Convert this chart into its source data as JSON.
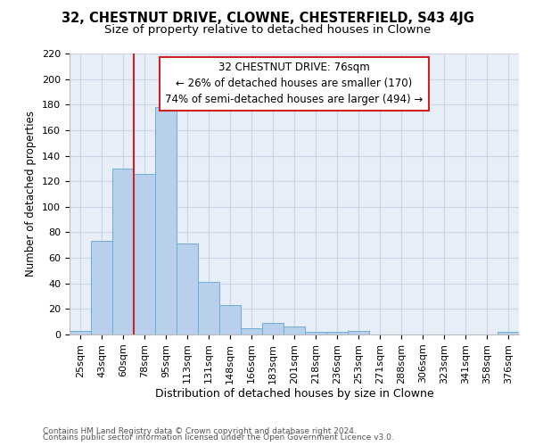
{
  "title1": "32, CHESTNUT DRIVE, CLOWNE, CHESTERFIELD, S43 4JG",
  "title2": "Size of property relative to detached houses in Clowne",
  "xlabel": "Distribution of detached houses by size in Clowne",
  "ylabel": "Number of detached properties",
  "categories": [
    "25sqm",
    "43sqm",
    "60sqm",
    "78sqm",
    "95sqm",
    "113sqm",
    "131sqm",
    "148sqm",
    "166sqm",
    "183sqm",
    "201sqm",
    "218sqm",
    "236sqm",
    "253sqm",
    "271sqm",
    "288sqm",
    "306sqm",
    "323sqm",
    "341sqm",
    "358sqm",
    "376sqm"
  ],
  "values": [
    3,
    73,
    130,
    126,
    178,
    71,
    41,
    23,
    5,
    9,
    6,
    2,
    2,
    3,
    0,
    0,
    0,
    0,
    0,
    0,
    2
  ],
  "bar_color": "#b8d0eb",
  "bar_edge_color": "#6aaed6",
  "vline_x": 2.5,
  "vline_color": "#cc2222",
  "annotation_text": "32 CHESTNUT DRIVE: 76sqm\n← 26% of detached houses are smaller (170)\n74% of semi-detached houses are larger (494) →",
  "annotation_box_color": "#ffffff",
  "annotation_box_edge_color": "#cc2222",
  "ylim": [
    0,
    220
  ],
  "yticks": [
    0,
    20,
    40,
    60,
    80,
    100,
    120,
    140,
    160,
    180,
    200,
    220
  ],
  "grid_color": "#c8d4e8",
  "bg_color": "#e8eef8",
  "footer1": "Contains HM Land Registry data © Crown copyright and database right 2024.",
  "footer2": "Contains public sector information licensed under the Open Government Licence v3.0.",
  "title1_fontsize": 10.5,
  "title2_fontsize": 9.5,
  "xlabel_fontsize": 9,
  "ylabel_fontsize": 8.5,
  "tick_fontsize": 8,
  "footer_fontsize": 6.5
}
